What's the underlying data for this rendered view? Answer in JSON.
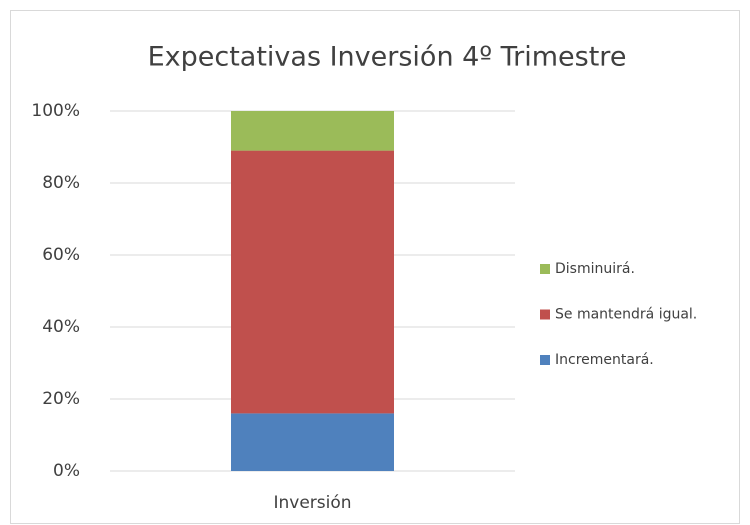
{
  "chart_data": {
    "type": "stacked_bar",
    "title": "Expectativas Inversión 4º Trimestre",
    "categories": [
      "Inversión"
    ],
    "series": [
      {
        "name": "Incrementará.",
        "color": "#4f81bd",
        "values": [
          16
        ]
      },
      {
        "name": "Se mantendrá igual.",
        "color": "#c0504d",
        "values": [
          73
        ]
      },
      {
        "name": "Disminuirá.",
        "color": "#9bbb59",
        "values": [
          11
        ]
      }
    ],
    "ylim": [
      0,
      100
    ],
    "yticks": [
      {
        "value": 0,
        "label": "0%"
      },
      {
        "value": 20,
        "label": "20%"
      },
      {
        "value": 40,
        "label": "40%"
      },
      {
        "value": 60,
        "label": "60%"
      },
      {
        "value": 80,
        "label": "80%"
      },
      {
        "value": 100,
        "label": "100%"
      }
    ],
    "grid": true,
    "legend": "right"
  }
}
